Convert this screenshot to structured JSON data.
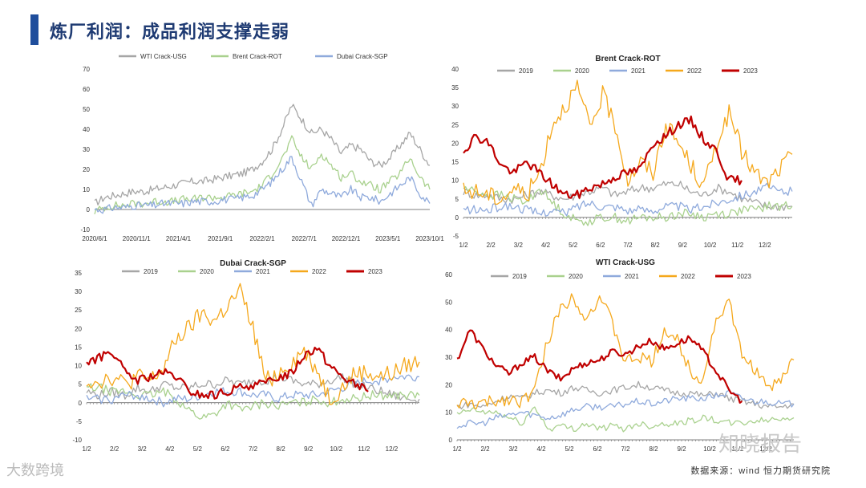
{
  "page": {
    "title": "炼厂利润：成品利润支撑走弱",
    "source": "数据来源：wind 恒力期货研究院",
    "watermark_left": "大数跨境",
    "watermark_right": "知晓报告"
  },
  "colors": {
    "title_bar": "#1f4e9c",
    "s2019": "#a6a6a6",
    "s2020": "#a9d18e",
    "s2021": "#8faadc",
    "s2022": "#f5a81c",
    "s2023": "#c00000",
    "wti_usg": "#a6a6a6",
    "brent_rot": "#a9d18e",
    "dubai_sgp": "#8faadc"
  },
  "chart_data": [
    {
      "id": "top-left",
      "type": "line",
      "title": "",
      "legend": [
        "WTI Crack-USG",
        "Brent Crack-ROT",
        "Dubai Crack-SGP"
      ],
      "x_ticks": [
        "2020/6/1",
        "2020/11/1",
        "2021/4/1",
        "2021/9/1",
        "2022/2/1",
        "2022/7/1",
        "2022/12/1",
        "2023/5/1",
        "2023/10/1"
      ],
      "y_ticks": [
        70,
        60,
        50,
        40,
        30,
        20,
        10,
        0,
        -10
      ],
      "ylim": [
        -10,
        70
      ],
      "series": [
        {
          "name": "WTI Crack-USG",
          "color": "wti_usg",
          "values": [
            3,
            6,
            7,
            8,
            9,
            9,
            10,
            11,
            12,
            13,
            14,
            14,
            15,
            16,
            17,
            18,
            20,
            24,
            30,
            40,
            52,
            45,
            38,
            40,
            35,
            28,
            32,
            30,
            24,
            22,
            26,
            32,
            38,
            30,
            22
          ]
        },
        {
          "name": "Brent Crack-ROT",
          "color": "brent_rot",
          "values": [
            -1,
            1,
            2,
            2,
            3,
            3,
            4,
            4,
            4,
            5,
            5,
            6,
            6,
            6,
            7,
            8,
            9,
            12,
            18,
            25,
            35,
            26,
            20,
            28,
            22,
            16,
            18,
            14,
            12,
            10,
            14,
            18,
            26,
            16,
            10
          ]
        },
        {
          "name": "Dubai Crack-SGP",
          "color": "dubai_sgp",
          "values": [
            0,
            0,
            1,
            1,
            2,
            2,
            2,
            3,
            3,
            3,
            4,
            4,
            4,
            5,
            5,
            6,
            7,
            10,
            14,
            20,
            26,
            14,
            2,
            10,
            8,
            6,
            10,
            6,
            6,
            4,
            8,
            12,
            16,
            8,
            3
          ]
        }
      ]
    },
    {
      "id": "top-right",
      "type": "line",
      "title": "Brent Crack-ROT",
      "legend": [
        "2019",
        "2020",
        "2021",
        "2022",
        "2023"
      ],
      "x_ticks": [
        "1/2",
        "2/2",
        "3/2",
        "4/2",
        "5/2",
        "6/2",
        "7/2",
        "8/2",
        "9/2",
        "10/2",
        "11/2",
        "12/2"
      ],
      "y_ticks": [
        40,
        35,
        30,
        25,
        20,
        15,
        10,
        5,
        0,
        -5
      ],
      "ylim": [
        -5,
        40
      ],
      "series": [
        {
          "name": "2019",
          "color": "s2019",
          "values": [
            7,
            6,
            6,
            5,
            5,
            6,
            7,
            6,
            5,
            6,
            7,
            8,
            6,
            7,
            8,
            8,
            9,
            9,
            7,
            6,
            8,
            7,
            5,
            4,
            3,
            3,
            3
          ]
        },
        {
          "name": "2020",
          "color": "s2020",
          "values": [
            8,
            7,
            6,
            6,
            5,
            4,
            8,
            4,
            1,
            -1,
            -1,
            0,
            0,
            -1,
            0,
            0,
            0,
            1,
            1,
            0,
            1,
            1,
            2,
            2,
            3,
            3,
            3
          ]
        },
        {
          "name": "2021",
          "color": "s2021",
          "values": [
            2,
            2,
            2,
            3,
            3,
            2,
            1,
            2,
            1,
            3,
            4,
            3,
            3,
            2,
            2,
            2,
            3,
            3,
            2,
            3,
            4,
            5,
            6,
            7,
            8,
            7,
            7
          ]
        },
        {
          "name": "2022",
          "color": "s2022",
          "values": [
            7,
            7,
            6,
            5,
            8,
            6,
            12,
            25,
            30,
            35,
            24,
            33,
            25,
            10,
            15,
            12,
            25,
            20,
            14,
            8,
            20,
            28,
            18,
            12,
            9,
            13,
            17
          ]
        },
        {
          "name": "2023",
          "color": "s2023",
          "values": [
            18,
            22,
            20,
            14,
            12,
            15,
            12,
            9,
            6,
            6,
            8,
            9,
            11,
            12,
            13,
            20,
            22,
            25,
            26,
            21,
            18,
            10,
            10
          ]
        }
      ]
    },
    {
      "id": "bottom-left",
      "type": "line",
      "title": "Dubai Crack-SGP",
      "legend": [
        "2019",
        "2020",
        "2021",
        "2022",
        "2023"
      ],
      "x_ticks": [
        "1/2",
        "2/2",
        "3/2",
        "4/2",
        "5/2",
        "6/2",
        "7/2",
        "8/2",
        "9/2",
        "10/2",
        "11/2",
        "12/2"
      ],
      "y_ticks": [
        35,
        30,
        25,
        20,
        15,
        10,
        5,
        0,
        -5,
        -10
      ],
      "ylim": [
        -10,
        35
      ],
      "series": [
        {
          "name": "2019",
          "color": "s2019",
          "values": [
            3,
            2,
            3,
            2,
            4,
            3,
            5,
            4,
            4,
            5,
            5,
            6,
            5,
            6,
            6,
            7,
            6,
            5,
            5,
            6,
            7,
            5,
            4,
            3,
            2,
            1,
            1
          ]
        },
        {
          "name": "2020",
          "color": "s2020",
          "values": [
            4,
            4,
            3,
            3,
            2,
            2,
            3,
            1,
            -2,
            -4,
            -3,
            0,
            -2,
            -1,
            0,
            -1,
            0,
            0,
            1,
            0,
            1,
            1,
            2,
            2,
            2,
            2,
            2
          ]
        },
        {
          "name": "2021",
          "color": "s2021",
          "values": [
            1,
            1,
            1,
            2,
            2,
            1,
            0,
            1,
            1,
            2,
            3,
            3,
            3,
            2,
            2,
            1,
            2,
            2,
            2,
            3,
            4,
            5,
            6,
            6,
            7,
            7,
            7
          ]
        },
        {
          "name": "2022",
          "color": "s2022",
          "values": [
            6,
            6,
            7,
            5,
            7,
            6,
            9,
            17,
            20,
            24,
            22,
            26,
            30,
            20,
            6,
            8,
            11,
            14,
            9,
            1,
            4,
            8,
            8,
            7,
            8,
            10,
            11
          ]
        },
        {
          "name": "2023",
          "color": "s2023",
          "values": [
            11,
            12,
            14,
            8,
            6,
            7,
            8,
            7,
            3,
            2,
            2,
            3,
            4,
            5,
            5,
            7,
            8,
            13,
            15,
            10,
            7,
            5,
            3
          ]
        }
      ]
    },
    {
      "id": "bottom-right",
      "type": "line",
      "title": "WTI Crack-USG",
      "legend": [
        "2019",
        "2020",
        "2021",
        "2022",
        "2023"
      ],
      "x_ticks": [
        "1/2",
        "2/2",
        "3/2",
        "4/2",
        "5/2",
        "6/2",
        "7/2",
        "8/2",
        "9/2",
        "10/2",
        "11/2",
        "12/2"
      ],
      "y_ticks": [
        60,
        50,
        40,
        30,
        20,
        10,
        0
      ],
      "ylim": [
        0,
        60
      ],
      "series": [
        {
          "name": "2019",
          "color": "s2019",
          "values": [
            12,
            13,
            12,
            14,
            16,
            15,
            17,
            18,
            17,
            19,
            18,
            17,
            18,
            19,
            20,
            19,
            18,
            17,
            17,
            16,
            17,
            15,
            14,
            13,
            12,
            12,
            13
          ]
        },
        {
          "name": "2020",
          "color": "s2020",
          "values": [
            9,
            11,
            10,
            10,
            8,
            6,
            12,
            4,
            5,
            4,
            6,
            4,
            5,
            4,
            6,
            5,
            6,
            6,
            7,
            8,
            7,
            6,
            6,
            7,
            7,
            8,
            8
          ]
        },
        {
          "name": "2021",
          "color": "s2021",
          "values": [
            5,
            6,
            6,
            8,
            9,
            10,
            9,
            8,
            9,
            11,
            12,
            12,
            12,
            13,
            14,
            13,
            14,
            15,
            15,
            15,
            16,
            17,
            15,
            14,
            14,
            13,
            13
          ]
        },
        {
          "name": "2022",
          "color": "s2022",
          "values": [
            13,
            13,
            13,
            14,
            15,
            14,
            18,
            36,
            48,
            52,
            44,
            52,
            42,
            28,
            30,
            28,
            40,
            36,
            25,
            22,
            44,
            50,
            30,
            26,
            18,
            22,
            29
          ]
        },
        {
          "name": "2023",
          "color": "s2023",
          "values": [
            29,
            40,
            33,
            27,
            24,
            28,
            30,
            25,
            22,
            26,
            28,
            29,
            32,
            31,
            34,
            36,
            33,
            35,
            37,
            32,
            25,
            18,
            14
          ]
        }
      ]
    }
  ]
}
